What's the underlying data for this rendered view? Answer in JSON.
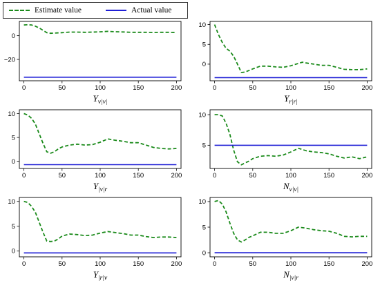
{
  "legend": {
    "estimate_label": "Estimate value",
    "actual_label": "Actual value",
    "estimate_color": "#1a8a1a",
    "actual_color": "#1f1fd6",
    "placement": "top-left"
  },
  "chart_data": [
    {
      "type": "line",
      "xlabel_main": "Y",
      "xlabel_sub": "v|v|",
      "xlim": [
        -6,
        206
      ],
      "ylim": [
        -38,
        12
      ],
      "xticks": [
        0,
        50,
        100,
        150,
        200
      ],
      "yticks": [
        0,
        -20
      ],
      "ytick_labels": [
        "0",
        "−20"
      ],
      "series": [
        {
          "name": "Estimate value",
          "style": "dashed",
          "x": [
            0,
            5,
            10,
            15,
            20,
            25,
            30,
            35,
            40,
            50,
            60,
            70,
            80,
            90,
            100,
            110,
            120,
            130,
            140,
            150,
            160,
            170,
            180,
            190,
            200
          ],
          "values": [
            9,
            9.2,
            9,
            8,
            6.5,
            4.5,
            2.5,
            2,
            2.2,
            2.5,
            3,
            3,
            2.8,
            3,
            3.2,
            3.6,
            3.3,
            3.1,
            2.8,
            2.8,
            2.8,
            2.7,
            2.8,
            2.8,
            2.7
          ]
        },
        {
          "name": "Actual value",
          "style": "solid",
          "x": [
            0,
            200
          ],
          "values": [
            -35,
            -35
          ]
        }
      ]
    },
    {
      "type": "line",
      "xlabel_main": "Y",
      "xlabel_sub": "r|r|",
      "xlim": [
        -6,
        206
      ],
      "ylim": [
        -4.2,
        10.8
      ],
      "xticks": [
        0,
        50,
        100,
        150,
        200
      ],
      "yticks": [
        10,
        5,
        0
      ],
      "ytick_labels": [
        "10",
        "5",
        "0"
      ],
      "series": [
        {
          "name": "Estimate value",
          "style": "dashed",
          "x": [
            0,
            5,
            10,
            15,
            20,
            25,
            30,
            35,
            40,
            50,
            60,
            70,
            80,
            90,
            100,
            110,
            115,
            120,
            130,
            140,
            150,
            160,
            170,
            180,
            190,
            200
          ],
          "values": [
            10,
            7.5,
            5.5,
            4,
            3.3,
            2,
            0,
            -2.1,
            -2,
            -1.2,
            -0.5,
            -0.5,
            -0.7,
            -0.8,
            -0.4,
            0.2,
            0.5,
            0.3,
            0,
            -0.3,
            -0.3,
            -0.8,
            -1.3,
            -1.4,
            -1.4,
            -1.2
          ]
        },
        {
          "name": "Actual value",
          "style": "solid",
          "x": [
            0,
            200
          ],
          "values": [
            -3.4,
            -3.4
          ]
        }
      ]
    },
    {
      "type": "line",
      "xlabel_main": "Y",
      "xlabel_sub": "|v|r",
      "xlim": [
        -6,
        206
      ],
      "ylim": [
        -1.5,
        10.8
      ],
      "xticks": [
        0,
        50,
        100,
        150,
        200
      ],
      "yticks": [
        10,
        5,
        0
      ],
      "ytick_labels": [
        "10",
        "5",
        "0"
      ],
      "series": [
        {
          "name": "Estimate value",
          "style": "dashed",
          "x": [
            0,
            5,
            10,
            15,
            20,
            25,
            30,
            35,
            40,
            45,
            50,
            60,
            70,
            80,
            90,
            100,
            110,
            120,
            130,
            140,
            150,
            160,
            170,
            180,
            190,
            200
          ],
          "values": [
            10,
            9.7,
            9,
            7.8,
            5.8,
            3.8,
            2,
            1.7,
            2,
            2.6,
            3,
            3.4,
            3.6,
            3.4,
            3.5,
            4,
            4.7,
            4.4,
            4.2,
            3.9,
            3.9,
            3.4,
            2.9,
            2.7,
            2.6,
            2.7
          ]
        },
        {
          "name": "Actual value",
          "style": "solid",
          "x": [
            0,
            200
          ],
          "values": [
            -0.7,
            -0.7
          ]
        }
      ]
    },
    {
      "type": "line",
      "xlabel_main": "N",
      "xlabel_sub": "v|v|",
      "xlim": [
        -6,
        206
      ],
      "ylim": [
        1.2,
        10.8
      ],
      "xticks": [
        0,
        50,
        100,
        150,
        200
      ],
      "yticks": [
        10,
        5
      ],
      "ytick_labels": [
        "10",
        "5"
      ],
      "series": [
        {
          "name": "Estimate value",
          "style": "dashed",
          "x": [
            0,
            5,
            10,
            15,
            20,
            25,
            30,
            35,
            40,
            45,
            50,
            60,
            70,
            80,
            90,
            100,
            110,
            120,
            130,
            140,
            150,
            160,
            170,
            180,
            190,
            200
          ],
          "values": [
            10,
            10,
            9.8,
            8.6,
            6.8,
            4.2,
            2.3,
            1.8,
            2.1,
            2.4,
            2.8,
            3.2,
            3.3,
            3.2,
            3.4,
            3.9,
            4.5,
            4.1,
            3.9,
            3.8,
            3.6,
            3.2,
            2.9,
            3.1,
            2.8,
            3.1
          ]
        },
        {
          "name": "Actual value",
          "style": "solid",
          "x": [
            0,
            200
          ],
          "values": [
            5,
            5
          ]
        }
      ]
    },
    {
      "type": "line",
      "xlabel_main": "Y",
      "xlabel_sub": "|r|v",
      "xlim": [
        -6,
        206
      ],
      "ylim": [
        -1.2,
        10.8
      ],
      "xticks": [
        0,
        50,
        100,
        150,
        200
      ],
      "yticks": [
        10,
        5,
        0
      ],
      "ytick_labels": [
        "10",
        "5",
        "0"
      ],
      "series": [
        {
          "name": "Estimate value",
          "style": "dashed",
          "x": [
            0,
            5,
            10,
            15,
            20,
            25,
            30,
            35,
            40,
            45,
            50,
            60,
            70,
            80,
            90,
            100,
            110,
            120,
            130,
            140,
            150,
            160,
            170,
            180,
            190,
            200
          ],
          "values": [
            10,
            9.8,
            9,
            7.8,
            5.8,
            3.8,
            2,
            1.9,
            2,
            2.4,
            3,
            3.4,
            3.3,
            3.1,
            3.2,
            3.6,
            3.9,
            3.7,
            3.5,
            3.2,
            3.2,
            2.9,
            2.7,
            2.8,
            2.8,
            2.7
          ]
        },
        {
          "name": "Actual value",
          "style": "solid",
          "x": [
            0,
            200
          ],
          "values": [
            -0.4,
            -0.4
          ]
        }
      ]
    },
    {
      "type": "line",
      "xlabel_main": "N",
      "xlabel_sub": "|v|r",
      "xlim": [
        -6,
        206
      ],
      "ylim": [
        -0.8,
        10.8
      ],
      "xticks": [
        0,
        50,
        100,
        150,
        200
      ],
      "yticks": [
        10,
        5,
        0
      ],
      "ytick_labels": [
        "10",
        "5",
        "0"
      ],
      "series": [
        {
          "name": "Estimate value",
          "style": "dashed",
          "x": [
            0,
            5,
            10,
            15,
            20,
            25,
            30,
            35,
            40,
            45,
            50,
            60,
            70,
            80,
            90,
            100,
            110,
            120,
            130,
            140,
            150,
            160,
            170,
            180,
            190,
            200
          ],
          "values": [
            10,
            10.2,
            9.5,
            8,
            5.8,
            3.8,
            2.5,
            2.1,
            2.5,
            3,
            3.3,
            4,
            4,
            3.8,
            3.8,
            4.3,
            5,
            4.8,
            4.5,
            4.3,
            4.2,
            3.8,
            3.2,
            3.1,
            3.2,
            3.2
          ]
        },
        {
          "name": "Actual value",
          "style": "solid",
          "x": [
            0,
            200
          ],
          "values": [
            0,
            0
          ]
        }
      ]
    }
  ]
}
